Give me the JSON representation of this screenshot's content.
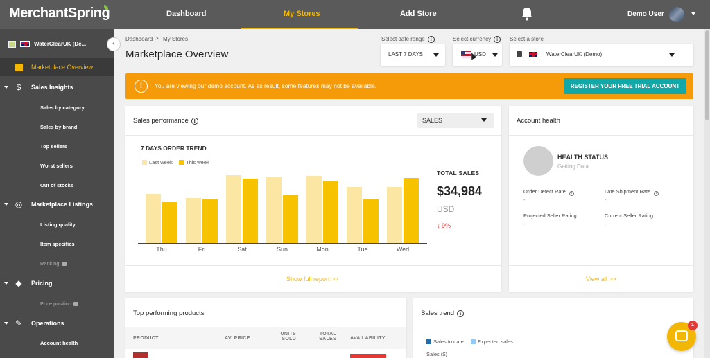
{
  "app": {
    "logo_text": "MerchantSpring"
  },
  "nav": {
    "dashboard": "Dashboard",
    "my_stores": "My Stores",
    "add_store": "Add Store",
    "user_name": "Demo User"
  },
  "sidebar": {
    "store_name": "WaterClearUK (De...",
    "active_item": "Marketplace Overview",
    "sections": [
      {
        "label": "Sales Insights",
        "items": [
          "Sales by category",
          "Sales by brand",
          "Top sellers",
          "Worst sellers",
          "Out of stocks"
        ]
      },
      {
        "label": "Marketplace Listings",
        "items": [
          "Listing quality",
          "Item specifics",
          "Ranking"
        ]
      },
      {
        "label": "Pricing",
        "items": [
          "Price position"
        ]
      },
      {
        "label": "Operations",
        "items": [
          "Account health"
        ]
      }
    ]
  },
  "breadcrumb": {
    "root": "Dashboard",
    "separator": ">",
    "current": "My Stores"
  },
  "page": {
    "title": "Marketplace Overview"
  },
  "filters": {
    "date_label": "Select date range",
    "date_value": "LAST 7 DAYS",
    "currency_label": "Select currency",
    "currency_value": "USD",
    "store_label": "Select a store",
    "store_value": "WaterClearUK (Demo)"
  },
  "banner": {
    "icon": "!",
    "message": "You are viewing our demo account. As as result, some features may not be available.",
    "cta": "REGISTER YOUR FREE TRIAL ACCOUNT"
  },
  "sales_performance": {
    "title": "Sales performance",
    "metric_select": "SALES",
    "chart_title": "7 DAYS ORDER TREND",
    "total_label": "TOTAL SALES",
    "total_value": "$34,984",
    "total_currency": "USD",
    "change": "↓ 9%",
    "link": "Show full report >>"
  },
  "chart_data": {
    "type": "bar",
    "title": "7 DAYS ORDER TREND",
    "categories": [
      "Thu",
      "Fri",
      "Sat",
      "Sun",
      "Mon",
      "Tue",
      "Wed"
    ],
    "series": [
      {
        "name": "Last week",
        "color": "#fbe6a3",
        "values": [
          71,
          65,
          98,
          96,
          97,
          81,
          81
        ]
      },
      {
        "name": "This week",
        "color": "#f7c200",
        "values": [
          60,
          63,
          93,
          70,
          90,
          64,
          94
        ]
      }
    ],
    "ylim": [
      0,
      100
    ],
    "grid": false,
    "legend": "top-left"
  },
  "account_health": {
    "title": "Account health",
    "status_title": "HEALTH STATUS",
    "status_sub": "Getting Data",
    "metrics": [
      {
        "label": "Order Defect Rate",
        "value": "-"
      },
      {
        "label": "Late Shipment Rate",
        "value": "-"
      },
      {
        "label": "Projected Seller Rating",
        "value": "-"
      },
      {
        "label": "Current Seller Rating",
        "value": "-"
      }
    ],
    "link": "View all >>"
  },
  "top_products": {
    "title": "Top performing products",
    "columns": [
      "PRODUCT",
      "AV. PRICE",
      "UNITS SOLD",
      "TOTAL SALES",
      "AVAILABILITY"
    ]
  },
  "sales_trend": {
    "title": "Sales trend",
    "legend": [
      "Sales to date",
      "Expected sales"
    ],
    "legend_colors": [
      "#1f6fb0",
      "#90caf9"
    ],
    "ylabel": "Sales ($)"
  },
  "chat": {
    "badge": "1"
  }
}
